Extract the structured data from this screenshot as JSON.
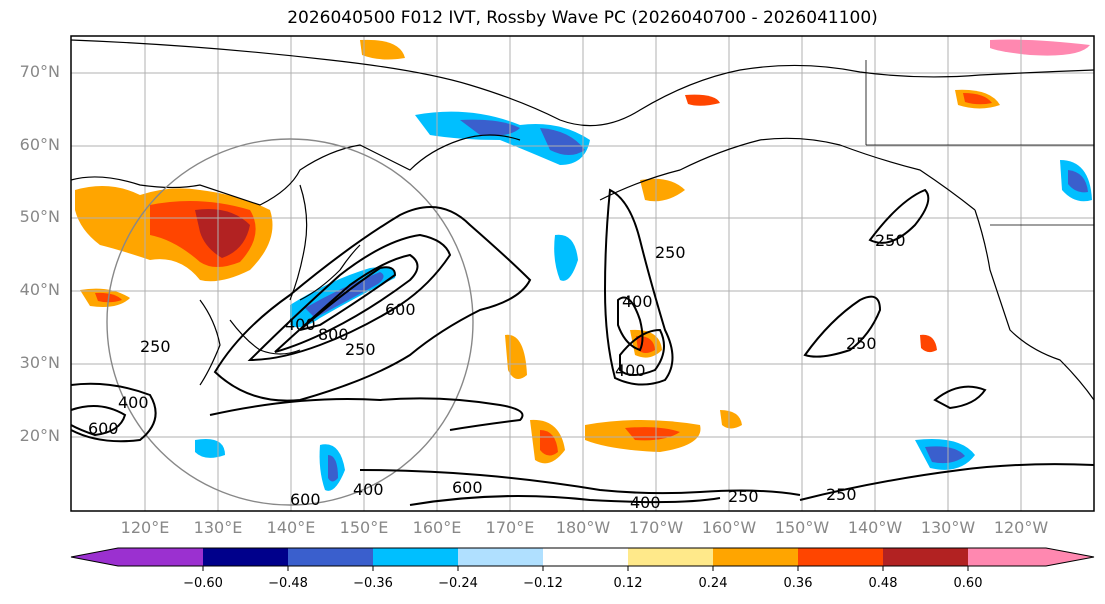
{
  "title": "2026040500 F012 IVT, Rossby Wave PC (2026040700 - 2026041100)",
  "lat_labels": [
    "70°N",
    "60°N",
    "50°N",
    "40°N",
    "30°N",
    "20°N"
  ],
  "lon_labels": [
    "120°E",
    "130°E",
    "140°E",
    "150°E",
    "160°E",
    "170°E",
    "180°W",
    "170°W",
    "160°W",
    "150°W",
    "140°W",
    "130°W",
    "120°W"
  ],
  "contour_labels": [
    "250",
    "400",
    "600",
    "800",
    "250",
    "400",
    "600",
    "250",
    "400",
    "250",
    "250",
    "600",
    "400",
    "400",
    "600",
    "400",
    "250",
    "250"
  ],
  "colorbar": {
    "ticks": [
      "−0.60",
      "−0.48",
      "−0.36",
      "−0.24",
      "−0.12",
      "0.12",
      "0.24",
      "0.36",
      "0.48",
      "0.60"
    ],
    "colors": [
      "#9b30d0",
      "#00008b",
      "#3a5fcd",
      "#00bfff",
      "#b0e0ff",
      "#ffffff",
      "#ffe98a",
      "#ffa500",
      "#ff4500",
      "#b22222",
      "#ff88b0"
    ]
  }
}
